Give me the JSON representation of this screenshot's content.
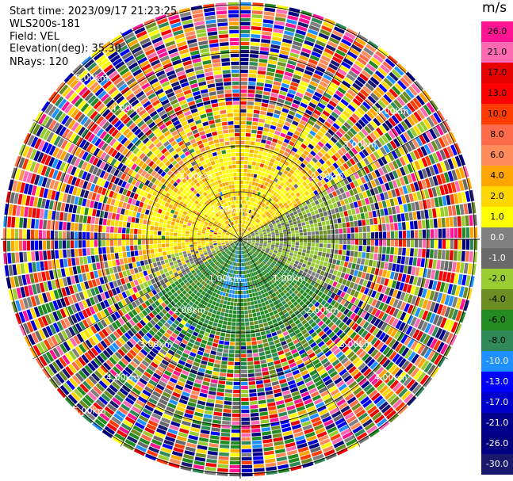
{
  "header": {
    "start_time": "Start time: 2023/09/17 21:23:25",
    "instrument": "WLS200s-181",
    "field": "Field: VEL",
    "elevation": "Elevation(deg): 35.30",
    "nrays": "NRays: 120"
  },
  "colorbar": {
    "unit": "m/s",
    "ticks": [
      "26.0",
      "21.0",
      "17.0",
      "13.0",
      "10.0",
      "8.0",
      "6.0",
      "4.0",
      "2.0",
      "1.0",
      "0.0",
      "-1.0",
      "-2.0",
      "-4.0",
      "-6.0",
      "-8.0",
      "-10.0",
      "-13.0",
      "-17.0",
      "-21.0",
      "-26.0",
      "-30.0"
    ],
    "colors": [
      "#ff1493",
      "#ff69b4",
      "#e60000",
      "#ff0000",
      "#ff3c00",
      "#ff6a4a",
      "#ff8c5a",
      "#ffa500",
      "#ffd700",
      "#ffff00",
      "#808080",
      "#696969",
      "#9acd32",
      "#6b8e23",
      "#228b22",
      "#2e8b57",
      "#1e90ff",
      "#0000ff",
      "#0000cd",
      "#00008b",
      "#000080",
      "#191970"
    ]
  },
  "chart_data": {
    "type": "ppi",
    "field": "VEL",
    "unit": "m/s",
    "nrays": 120,
    "range_rings": [
      "1.00km",
      "2.00km",
      "3.00km",
      "4.00km",
      "5.00km",
      "6.00km"
    ],
    "ring_labels": [
      {
        "ring": "1.00km",
        "text": "1.00km"
      },
      {
        "ring": "2.00km",
        "text": "2.00km"
      },
      {
        "ring": "3.00km",
        "text": "3.00km"
      },
      {
        "ring": "4.00km",
        "text": "4.00km"
      },
      {
        "ring": "5.00km",
        "text": "5.00km"
      }
    ],
    "regions": [
      {
        "sector": "north-west",
        "dominant_velocity": "2.0 to 8.0"
      },
      {
        "sector": "east",
        "dominant_velocity": "0.0 to -2.0"
      },
      {
        "sector": "south",
        "dominant_velocity": "-4.0 to -8.0"
      },
      {
        "sector": "outer",
        "dominant_velocity": "noise"
      }
    ]
  }
}
